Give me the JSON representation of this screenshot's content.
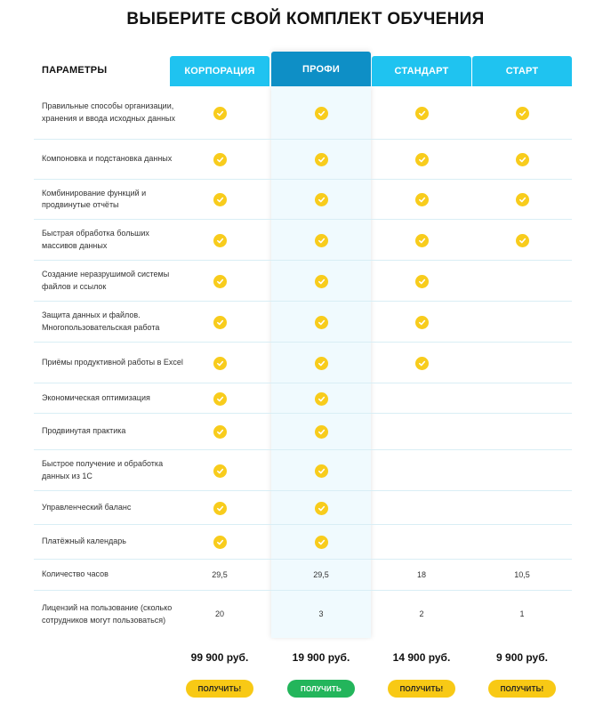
{
  "title": "ВЫБЕРИТЕ СВОЙ КОМПЛЕКТ ОБУЧЕНИЯ",
  "params_header": "ПАРАМЕТРЫ",
  "plans": [
    {
      "name": "КОРПОРАЦИЯ",
      "price": "99 900 руб.",
      "button": "ПОЛУЧИТЬ!",
      "featured": false
    },
    {
      "name": "ПРОФИ",
      "price": "19 900 руб.",
      "button": "ПОЛУЧИТЬ",
      "featured": true
    },
    {
      "name": "СТАНДАРТ",
      "price": "14 900 руб.",
      "button": "ПОЛУЧИТЬ!",
      "featured": false
    },
    {
      "name": "СТАРТ",
      "price": "9 900 руб.",
      "button": "ПОЛУЧИТЬ!",
      "featured": false
    }
  ],
  "colors": {
    "header_blue": "#1fc3f0",
    "header_featured": "#0e8fc6",
    "check_yellow": "#f8cc1c",
    "button_yellow": "#f8c915",
    "button_green": "#23b55b"
  },
  "rows": [
    {
      "label": "Правильные способы организации, хранения и ввода исходных данных",
      "cells": [
        true,
        true,
        true,
        true
      ]
    },
    {
      "label": "Компоновка и подстановка данных",
      "cells": [
        true,
        true,
        true,
        true
      ]
    },
    {
      "label": "Комбинирование функций и продвинутые отчёты",
      "cells": [
        true,
        true,
        true,
        true
      ]
    },
    {
      "label": "Быстрая обработка больших массивов данных",
      "cells": [
        true,
        true,
        true,
        true
      ]
    },
    {
      "label": "Создание неразрушимой системы файлов и ссылок",
      "cells": [
        true,
        true,
        true,
        false
      ]
    },
    {
      "label": "Защита данных и файлов. Многопользовательская работа",
      "cells": [
        true,
        true,
        true,
        false
      ]
    },
    {
      "label": "Приёмы продуктивной работы в Excel",
      "cells": [
        true,
        true,
        true,
        false
      ]
    },
    {
      "label": "Экономическая оптимизация",
      "cells": [
        true,
        true,
        false,
        false
      ]
    },
    {
      "label": "Продвинутая практика",
      "cells": [
        true,
        true,
        false,
        false
      ]
    },
    {
      "label": "Быстрое получение и обработка данных из 1С",
      "cells": [
        true,
        true,
        false,
        false
      ]
    },
    {
      "label": "Управленческий баланс",
      "cells": [
        true,
        true,
        false,
        false
      ]
    },
    {
      "label": "Платёжный календарь",
      "cells": [
        true,
        true,
        false,
        false
      ]
    },
    {
      "label": "Количество часов",
      "cells": [
        "29,5",
        "29,5",
        "18",
        "10,5"
      ]
    },
    {
      "label": "Лицензий на пользование (сколько сотрудников могут пользоваться)",
      "cells": [
        "20",
        "3",
        "2",
        "1"
      ]
    }
  ]
}
